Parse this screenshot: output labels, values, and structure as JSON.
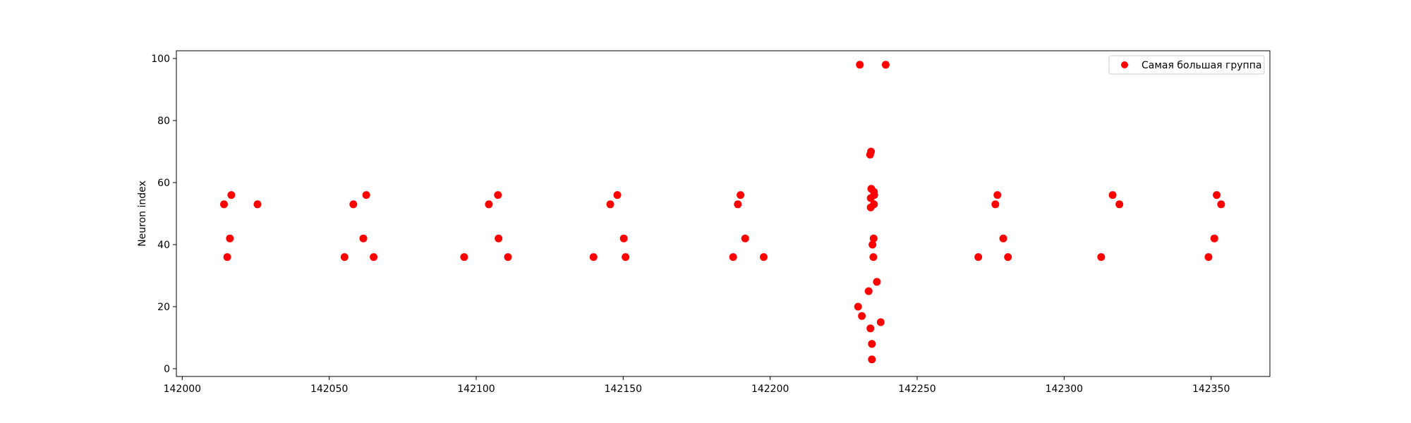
{
  "chart_data": {
    "type": "scatter",
    "title": "",
    "xlabel": "",
    "ylabel": "Neuron index",
    "xlim": [
      141998,
      142370
    ],
    "ylim": [
      -2.5,
      102.5
    ],
    "x_ticks": [
      142000,
      142050,
      142100,
      142150,
      142200,
      142250,
      142300,
      142350
    ],
    "y_ticks": [
      0,
      20,
      40,
      60,
      80,
      100
    ],
    "x_tick_labels": [
      "142000",
      "142050",
      "142100",
      "142150",
      "142200",
      "142250",
      "142300",
      "142350"
    ],
    "y_tick_labels": [
      "0",
      "20",
      "40",
      "60",
      "80",
      "100"
    ],
    "grid": false,
    "legend_position": "upper right",
    "series": [
      {
        "name": "Самая большая группа",
        "color": "#ff0000",
        "marker": "circle",
        "points": [
          [
            142014.2,
            53
          ],
          [
            142015.3,
            36
          ],
          [
            142016.2,
            42
          ],
          [
            142016.7,
            56
          ],
          [
            142025.6,
            53
          ],
          [
            142055.2,
            36
          ],
          [
            142058.2,
            53
          ],
          [
            142061.6,
            42
          ],
          [
            142062.6,
            56
          ],
          [
            142065.1,
            36
          ],
          [
            142095.9,
            36
          ],
          [
            142104.3,
            53
          ],
          [
            142107.4,
            56
          ],
          [
            142107.6,
            42
          ],
          [
            142110.8,
            36
          ],
          [
            142139.9,
            36
          ],
          [
            142145.6,
            53
          ],
          [
            142148.0,
            56
          ],
          [
            142150.2,
            42
          ],
          [
            142150.8,
            36
          ],
          [
            142187.4,
            36
          ],
          [
            142189.0,
            53
          ],
          [
            142189.9,
            56
          ],
          [
            142191.5,
            42
          ],
          [
            142197.8,
            36
          ],
          [
            142230.5,
            98
          ],
          [
            142239.3,
            98
          ],
          [
            142234.0,
            69
          ],
          [
            142234.3,
            70
          ],
          [
            142234.4,
            58
          ],
          [
            142234.2,
            55
          ],
          [
            142235.3,
            57
          ],
          [
            142235.4,
            56
          ],
          [
            142234.2,
            52
          ],
          [
            142235.3,
            53
          ],
          [
            142235.2,
            42
          ],
          [
            142234.8,
            40
          ],
          [
            142235.1,
            36
          ],
          [
            142236.3,
            28
          ],
          [
            142233.5,
            25
          ],
          [
            142229.9,
            20
          ],
          [
            142231.2,
            17
          ],
          [
            142237.6,
            15
          ],
          [
            142234.1,
            13
          ],
          [
            142234.6,
            8
          ],
          [
            142234.6,
            3
          ],
          [
            142270.8,
            36
          ],
          [
            142276.6,
            53
          ],
          [
            142277.3,
            56
          ],
          [
            142279.3,
            42
          ],
          [
            142280.9,
            36
          ],
          [
            142312.6,
            36
          ],
          [
            142316.5,
            56
          ],
          [
            142318.8,
            53
          ],
          [
            142349.1,
            36
          ],
          [
            142351.1,
            42
          ],
          [
            142351.9,
            56
          ],
          [
            142353.4,
            53
          ]
        ]
      }
    ]
  }
}
